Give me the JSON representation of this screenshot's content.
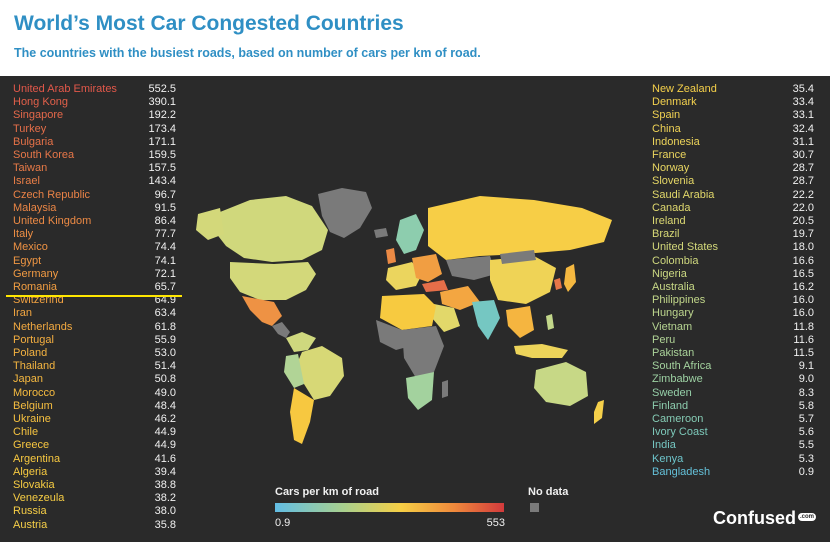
{
  "header": {
    "title": "World’s Most Car Congested Countries",
    "subtitle": "The countries with the busiest roads, based on number of cars per km of road."
  },
  "colors": {
    "title": "#2f8fc4",
    "panel_background": "#2a2a2a",
    "highlight_line": "#ffe600",
    "no_data": "#7a7a7a",
    "scale_low": "#62bde4",
    "scale_mid_low": "#a9d08e",
    "scale_mid": "#f6cf45",
    "scale_mid_high": "#f08a3c",
    "scale_high": "#d23a3c"
  },
  "highlighted_country": "Romania",
  "left_list": [
    {
      "country": "United Arab Emirates",
      "value": "552.5",
      "color": "#e2584a"
    },
    {
      "country": "Hong Kong",
      "value": "390.1",
      "color": "#e2604a"
    },
    {
      "country": "Singapore",
      "value": "192.2",
      "color": "#e4684a"
    },
    {
      "country": "Turkey",
      "value": "173.4",
      "color": "#e56e49"
    },
    {
      "country": "Bulgaria",
      "value": "171.1",
      "color": "#e67248"
    },
    {
      "country": "South Korea",
      "value": "159.5",
      "color": "#e77648"
    },
    {
      "country": "Taiwan",
      "value": "157.5",
      "color": "#e87a47"
    },
    {
      "country": "Israel",
      "value": "143.4",
      "color": "#e97e47"
    },
    {
      "country": "Czech Republic",
      "value": "96.7",
      "color": "#ea8246"
    },
    {
      "country": "Malaysia",
      "value": "91.5",
      "color": "#eb8645"
    },
    {
      "country": "United Kingdom",
      "value": "86.4",
      "color": "#ec8a45"
    },
    {
      "country": "Italy",
      "value": "77.7",
      "color": "#ed8e44"
    },
    {
      "country": "Mexico",
      "value": "74.4",
      "color": "#ee9244"
    },
    {
      "country": "Egypt",
      "value": "74.1",
      "color": "#ef9643"
    },
    {
      "country": "Germany",
      "value": "72.1",
      "color": "#f09a43"
    },
    {
      "country": "Romania",
      "value": "65.7",
      "color": "#f19e42"
    },
    {
      "country": "Switzerlnd",
      "value": "64.9",
      "color": "#f2a242"
    },
    {
      "country": "Iran",
      "value": "63.4",
      "color": "#f3a641"
    },
    {
      "country": "Netherlands",
      "value": "61.8",
      "color": "#f3aa41"
    },
    {
      "country": "Portugal",
      "value": "55.9",
      "color": "#f4ae40"
    },
    {
      "country": "Poland",
      "value": "53.0",
      "color": "#f4b240"
    },
    {
      "country": "Thailand",
      "value": "51.4",
      "color": "#f5b540"
    },
    {
      "country": "Japan",
      "value": "50.8",
      "color": "#f5b840"
    },
    {
      "country": "Morocco",
      "value": "49.0",
      "color": "#f6bb40"
    },
    {
      "country": "Belgium",
      "value": "48.4",
      "color": "#f6be40"
    },
    {
      "country": "Ukraine",
      "value": "46.2",
      "color": "#f6c140"
    },
    {
      "country": "Chile",
      "value": "44.9",
      "color": "#f7c440"
    },
    {
      "country": "Greece",
      "value": "44.9",
      "color": "#f7c640"
    },
    {
      "country": "Argentina",
      "value": "41.6",
      "color": "#f7c840"
    },
    {
      "country": "Algeria",
      "value": "39.4",
      "color": "#f7ca40"
    },
    {
      "country": "Slovakia",
      "value": "38.8",
      "color": "#f7cc42"
    },
    {
      "country": "Venezeula",
      "value": "38.2",
      "color": "#f7cd44"
    },
    {
      "country": "Russia",
      "value": "38.0",
      "color": "#f7ce46"
    },
    {
      "country": "Austria",
      "value": "35.8",
      "color": "#f6cf48"
    }
  ],
  "right_list": [
    {
      "country": "New Zealand",
      "value": "35.4",
      "color": "#f5d04a"
    },
    {
      "country": "Denmark",
      "value": "33.4",
      "color": "#f3d14e"
    },
    {
      "country": "Spain",
      "value": "33.1",
      "color": "#f1d252"
    },
    {
      "country": "China",
      "value": "32.4",
      "color": "#efd356"
    },
    {
      "country": "Indonesia",
      "value": "31.1",
      "color": "#edd45a"
    },
    {
      "country": "France",
      "value": "30.7",
      "color": "#ebd55e"
    },
    {
      "country": "Norway",
      "value": "28.7",
      "color": "#e8d662"
    },
    {
      "country": "Slovenia",
      "value": "28.7",
      "color": "#e5d766"
    },
    {
      "country": "Saudi Arabia",
      "value": "22.2",
      "color": "#e2d86a"
    },
    {
      "country": "Canada",
      "value": "22.0",
      "color": "#dfd86e"
    },
    {
      "country": "Ireland",
      "value": "20.5",
      "color": "#dbd872"
    },
    {
      "country": "Brazil",
      "value": "19.7",
      "color": "#d7d876"
    },
    {
      "country": "United States",
      "value": "18.0",
      "color": "#d3d87a"
    },
    {
      "country": "Colombia",
      "value": "16.6",
      "color": "#cfd87e"
    },
    {
      "country": "Nigeria",
      "value": "16.5",
      "color": "#cbd882"
    },
    {
      "country": "Australia",
      "value": "16.2",
      "color": "#c7d886"
    },
    {
      "country": "Philippines",
      "value": "16.0",
      "color": "#c2d78a"
    },
    {
      "country": "Hungary",
      "value": "16.0",
      "color": "#bdd68e"
    },
    {
      "country": "Vietnam",
      "value": "11.8",
      "color": "#b7d592"
    },
    {
      "country": "Peru",
      "value": "11.6",
      "color": "#b1d496"
    },
    {
      "country": "Pakistan",
      "value": "11.5",
      "color": "#aad39a"
    },
    {
      "country": "South Africa",
      "value": "9.1",
      "color": "#a3d29e"
    },
    {
      "country": "Zimbabwe",
      "value": "9.0",
      "color": "#9cd0a2"
    },
    {
      "country": "Sweden",
      "value": "8.3",
      "color": "#95cfa8"
    },
    {
      "country": "Finland",
      "value": "5.8",
      "color": "#8dcdae"
    },
    {
      "country": "Cameroon",
      "value": "5.7",
      "color": "#85cbb4"
    },
    {
      "country": "Ivory Coast",
      "value": "5.6",
      "color": "#7dc9ba"
    },
    {
      "country": "India",
      "value": "5.5",
      "color": "#75c7c2"
    },
    {
      "country": "Kenya",
      "value": "5.3",
      "color": "#6dc4ca"
    },
    {
      "country": "Bangladesh",
      "value": "0.9",
      "color": "#64c0d8"
    }
  ],
  "legend": {
    "title": "Cars per km of road",
    "min_label": "0.9",
    "max_label": "553",
    "no_data_label": "No data"
  },
  "brand": {
    "name": "Confused",
    "suffix": ".com"
  }
}
